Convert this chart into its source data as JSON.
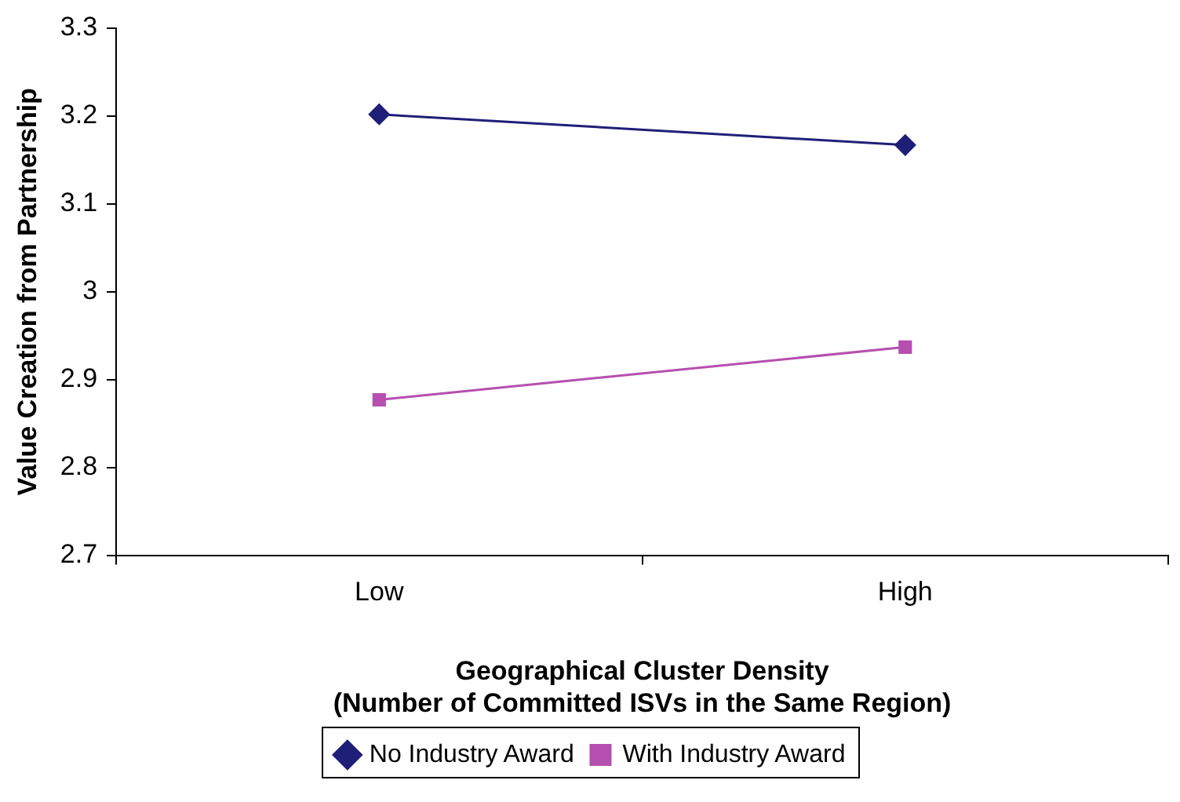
{
  "chart_data": {
    "type": "line",
    "xlabel": "Geographical Cluster Density\n(Number of Committed ISVs in the Same Region)",
    "ylabel": "Value Creation from Partnership",
    "categories": [
      "Low",
      "High"
    ],
    "series": [
      {
        "name": "No Industry Award",
        "color": "#1f1f78",
        "marker": "diamond",
        "values": [
          3.202,
          3.167
        ]
      },
      {
        "name": "With Industry Award",
        "color": "#b54fb0",
        "marker": "square",
        "values": [
          2.877,
          2.937
        ]
      }
    ],
    "ylim": [
      2.7,
      3.3
    ],
    "yticks": [
      2.7,
      2.8,
      2.9,
      3,
      3.1,
      3.2,
      3.3
    ],
    "grid": false,
    "legend": "bottom",
    "line_style": "solid"
  }
}
